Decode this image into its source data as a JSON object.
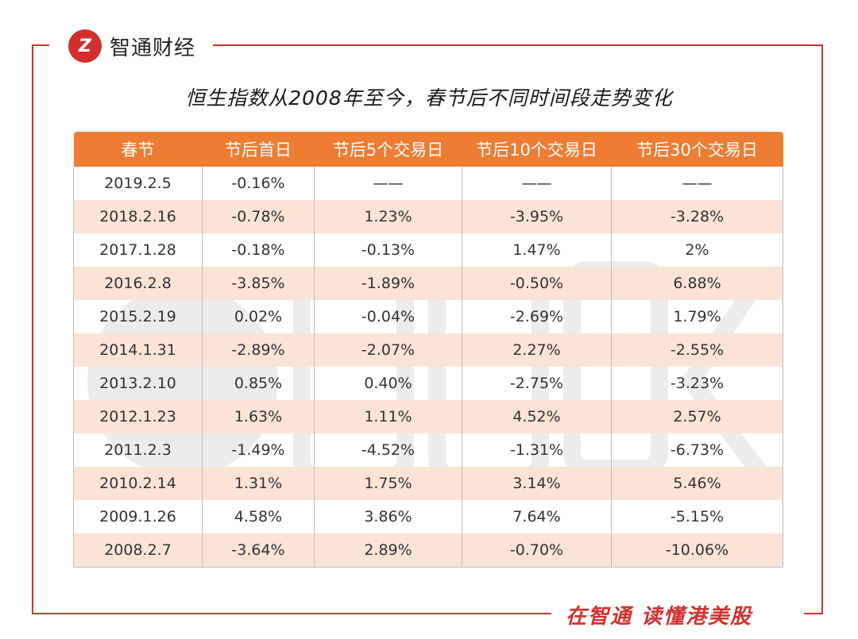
{
  "brand": {
    "logo_mark": "Z",
    "name": "智通财经",
    "slogan": "在智通 读懂港美股",
    "color": "#d42f2f"
  },
  "title": "恒生指数从2008年至今，春节后不同时间段走势变化",
  "table": {
    "header_color": "#ee7d33",
    "alt_row_color": "#fbe4d6",
    "columns": [
      "春节",
      "节后首日",
      "节后5个交易日",
      "节后10个交易日",
      "节后30个交易日"
    ],
    "rows": [
      [
        "2019.2.5",
        "-0.16%",
        "——",
        "——",
        "——"
      ],
      [
        "2018.2.16",
        "-0.78%",
        "1.23%",
        "-3.95%",
        "-3.28%"
      ],
      [
        "2017.1.28",
        "-0.18%",
        "-0.13%",
        "1.47%",
        "2%"
      ],
      [
        "2016.2.8",
        "-3.85%",
        "-1.89%",
        "-0.50%",
        "6.88%"
      ],
      [
        "2015.2.19",
        "0.02%",
        "-0.04%",
        "-2.69%",
        "1.79%"
      ],
      [
        "2014.1.31",
        "-2.89%",
        "-2.07%",
        "2.27%",
        "-2.55%"
      ],
      [
        "2013.2.10",
        "0.85%",
        "0.40%",
        "-2.75%",
        "-3.23%"
      ],
      [
        "2012.1.23",
        "1.63%",
        "1.11%",
        "4.52%",
        "2.57%"
      ],
      [
        "2011.2.3",
        "-1.49%",
        "-4.52%",
        "-1.31%",
        "-6.73%"
      ],
      [
        "2010.2.14",
        "1.31%",
        "1.75%",
        "3.14%",
        "5.46%"
      ],
      [
        "2009.1.26",
        "4.58%",
        "3.86%",
        "7.64%",
        "-5.15%"
      ],
      [
        "2008.2.7",
        "-3.64%",
        "2.89%",
        "-0.70%",
        "-10.06%"
      ]
    ]
  }
}
